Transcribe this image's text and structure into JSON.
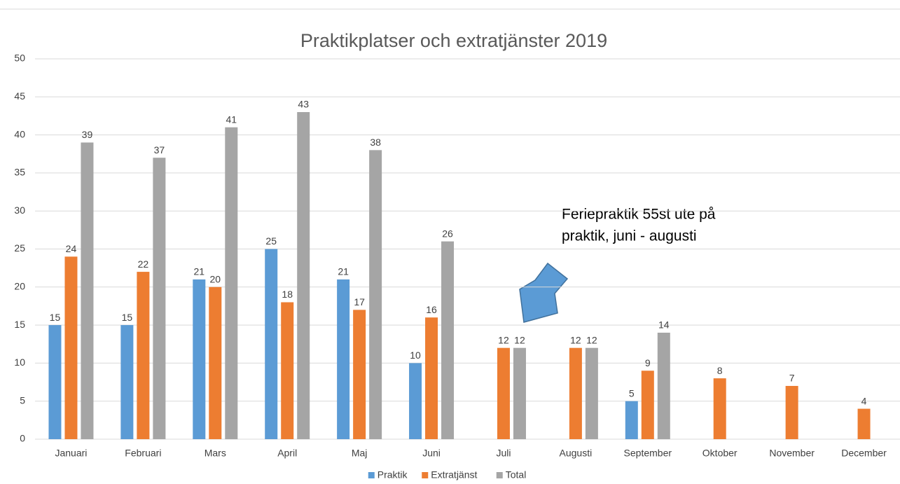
{
  "chart_data": {
    "type": "bar",
    "title": "Praktikplatser och extratjänster 2019",
    "categories": [
      "Januari",
      "Februari",
      "Mars",
      "April",
      "Maj",
      "Juni",
      "Juli",
      "Augusti",
      "September",
      "Oktober",
      "November",
      "December"
    ],
    "series": [
      {
        "name": "Praktik",
        "color": "#5b9bd5",
        "values": [
          15,
          15,
          21,
          25,
          21,
          10,
          null,
          null,
          5,
          null,
          null,
          null
        ]
      },
      {
        "name": "Extratjänst",
        "color": "#ed7d31",
        "values": [
          24,
          22,
          20,
          18,
          17,
          16,
          12,
          12,
          9,
          8,
          7,
          4
        ]
      },
      {
        "name": "Total",
        "color": "#a5a5a5",
        "values": [
          39,
          37,
          41,
          43,
          38,
          26,
          12,
          12,
          14,
          null,
          null,
          null
        ]
      }
    ],
    "ylim": [
      0,
      50
    ],
    "yticks": [
      0,
      5,
      10,
      15,
      20,
      25,
      30,
      35,
      40,
      45,
      50
    ],
    "grid": true,
    "legend": "bottom",
    "annotation": [
      "Feriepraktik 55st ute på",
      "praktik, juni - augusti"
    ]
  }
}
